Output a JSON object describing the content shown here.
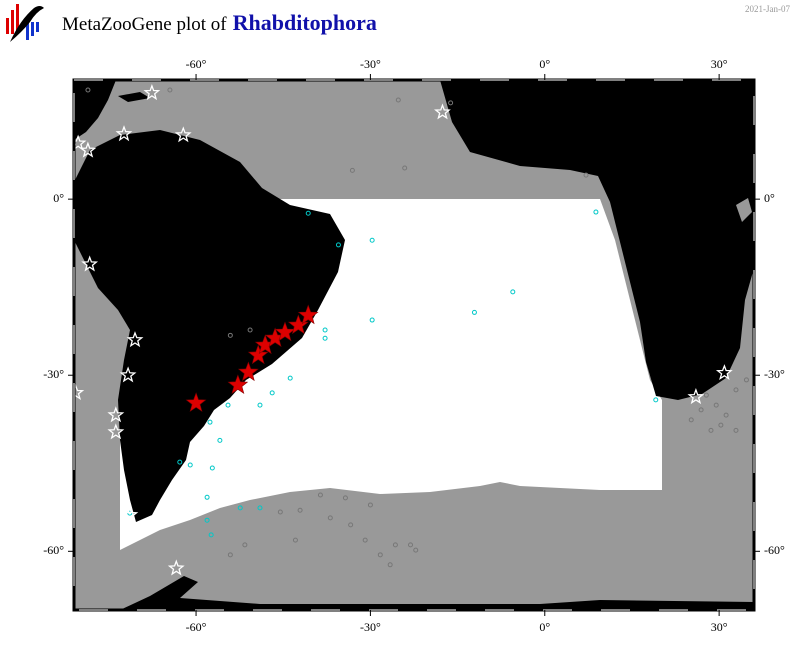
{
  "header": {
    "title": "MetaZooGene plot of",
    "taxon": "Rhabditophora",
    "date": "2021-Jan-07"
  },
  "map": {
    "lon_range": [
      -81,
      36
    ],
    "lat_range": [
      -70,
      20.3
    ],
    "lon_ticks": [
      {
        "value": -60,
        "label": "-60°"
      },
      {
        "value": -30,
        "label": "-30°"
      },
      {
        "value": 0,
        "label": "0°"
      },
      {
        "value": 30,
        "label": "30°"
      }
    ],
    "lat_ticks": [
      {
        "value": 0,
        "label": "0°"
      },
      {
        "value": -30,
        "label": "-30°"
      },
      {
        "value": -60,
        "label": "-60°"
      }
    ],
    "layers": [
      {
        "marker": "circle",
        "color": "#777777",
        "size": 2,
        "lon": [
          -25.2,
          -24.1,
          -33.1,
          7.1,
          -16.2,
          -64.5,
          -78.6,
          -42.1,
          -36.9,
          -33.4,
          -30.9,
          -28.3,
          -26.6,
          -25.7,
          -23.1,
          -30.0,
          -34.3,
          -38.6,
          -45.5,
          -51.6,
          -54.1,
          -42.9,
          -22.2,
          27.8,
          29.5,
          31.2,
          32.9,
          26.9,
          25.2,
          30.3,
          34.7,
          32.9,
          28.6,
          -54.1,
          -50.7
        ],
        "lat": [
          16.9,
          5.3,
          4.9,
          4.1,
          16.4,
          18.6,
          18.6,
          -53.0,
          -54.3,
          -55.5,
          -58.1,
          -60.6,
          -62.3,
          -58.9,
          -58.9,
          -52.1,
          -50.9,
          -50.4,
          -53.3,
          -58.9,
          -60.6,
          -58.1,
          -59.8,
          -33.4,
          -35.1,
          -36.8,
          -39.4,
          -35.9,
          -37.6,
          -38.5,
          -30.8,
          -32.5,
          -39.4,
          -23.2,
          -22.3
        ]
      },
      {
        "marker": "circle",
        "color": "#00c8c8",
        "size": 2,
        "lon": [
          -40.7,
          -35.5,
          -29.7,
          -5.5,
          -12.1,
          -29.7,
          -37.8,
          -37.8,
          -43.8,
          -46.9,
          -49.0,
          -54.5,
          -57.6,
          -55.9,
          -62.8,
          -61.0,
          -57.2,
          -58.1,
          -58.1,
          -57.4,
          -52.4,
          -49.0,
          -71.4,
          8.8,
          19.1
        ],
        "lat": [
          -2.4,
          -7.8,
          -7.0,
          -15.8,
          -19.3,
          -20.6,
          -22.3,
          -23.7,
          -30.5,
          -33.0,
          -35.1,
          -35.1,
          -38.0,
          -41.1,
          -44.8,
          -45.3,
          -45.8,
          -50.8,
          -54.7,
          -57.2,
          -52.6,
          -52.6,
          -53.5,
          -2.2,
          -34.2
        ]
      },
      {
        "marker": "star",
        "color": "#ffffff",
        "size": 7,
        "lon": [
          -67.6,
          -80.3,
          -78.6,
          -72.4,
          -62.2,
          -17.6,
          -78.3,
          -70.5,
          -71.7,
          -80.7,
          -73.8,
          -73.8,
          -63.4,
          30.9,
          26.0,
          -71.4
        ],
        "lat": [
          18.1,
          9.5,
          8.3,
          11.1,
          10.9,
          14.8,
          -11.1,
          -24.0,
          -30.0,
          -33.0,
          -36.8,
          -39.7,
          -62.9,
          -29.6,
          -33.7,
          -53.8
        ]
      },
      {
        "marker": "star",
        "color": "#dd0000",
        "size": 10,
        "lon": [
          -60.0,
          -52.8,
          -51.0,
          -49.3,
          -48.1,
          -46.4,
          -44.7,
          -42.4,
          -40.7
        ],
        "lat": [
          -34.75,
          -31.7,
          -29.5,
          -26.6,
          -24.9,
          -23.7,
          -22.7,
          -21.5,
          -19.8
        ]
      }
    ]
  }
}
